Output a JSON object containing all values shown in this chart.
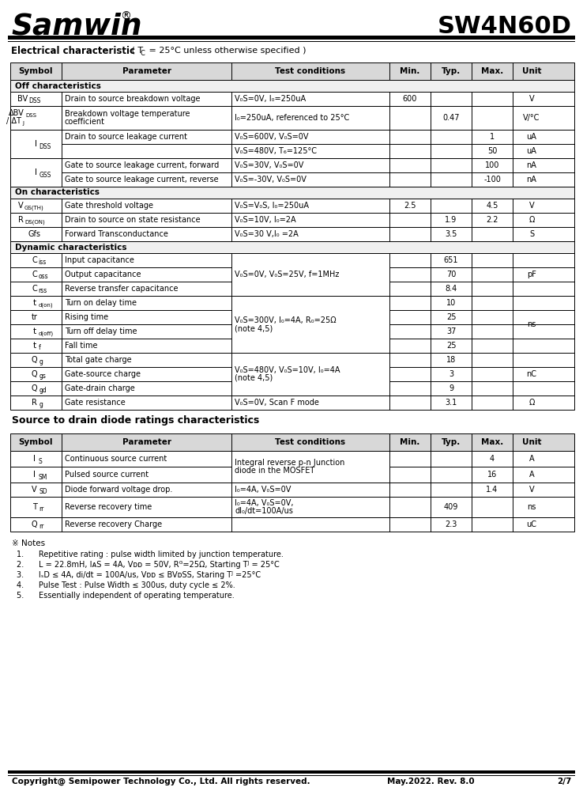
{
  "title_left": "Samwin",
  "title_right": "SW4N60D",
  "table1_headers": [
    "Symbol",
    "Parameter",
    "Test conditions",
    "Min.",
    "Typ.",
    "Max.",
    "Unit"
  ],
  "section1": "Off characteristics",
  "section2": "On characteristics",
  "section3": "Dynamic characteristics",
  "table2_title": "Source to drain diode ratings characteristics",
  "table2_headers": [
    "Symbol",
    "Parameter",
    "Test conditions",
    "Min.",
    "Typ.",
    "Max.",
    "Unit"
  ],
  "notes_title": "※ Notes",
  "footer_left": "Copyright@ Semipower Technology Co., Ltd. All rights reserved.",
  "footer_mid": "May.2022. Rev. 8.0",
  "footer_right": "2/7",
  "bg_color": "#ffffff"
}
